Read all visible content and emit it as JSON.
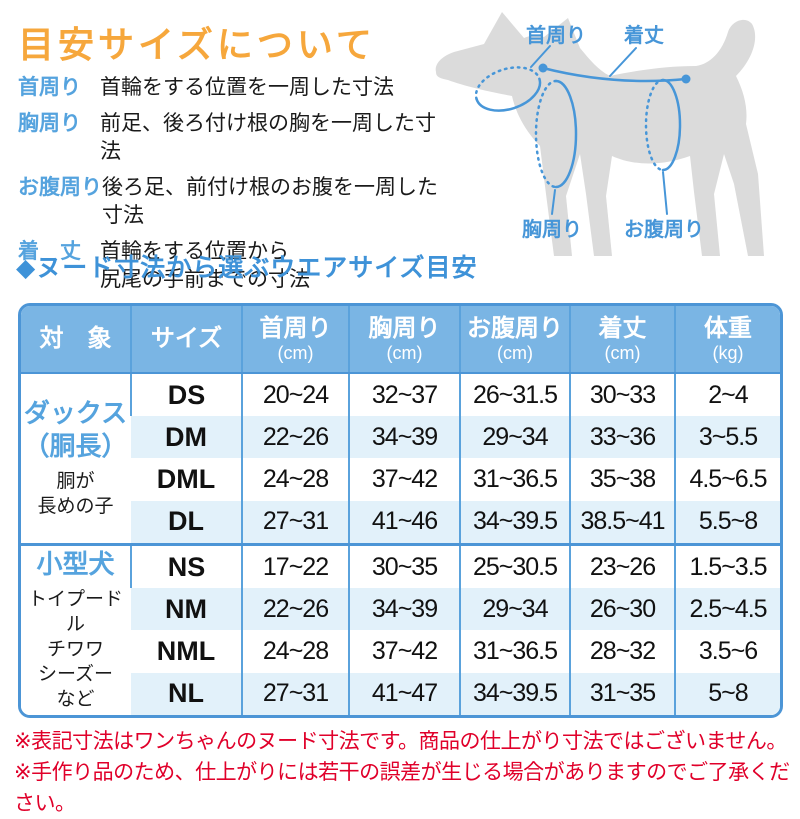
{
  "colors": {
    "title_orange": "#F6A73C",
    "label_blue": "#55A3DE",
    "section_blue": "#3E92D8",
    "table_header_blue": "#7AB5E4",
    "table_border_blue": "#4C95D6",
    "stripe_blue": "#E2F1FA",
    "note_red": "#E0002A",
    "dog_gray": "#DBDBDB",
    "diagram_blue": "#4796D8"
  },
  "header": {
    "title": "目安サイズについて"
  },
  "definitions": [
    {
      "term": "首周り",
      "desc": "首輪をする位置を一周した寸法",
      "desc2": ""
    },
    {
      "term": "胸周り",
      "desc": "前足、後ろ付け根の胸を一周した寸法",
      "desc2": ""
    },
    {
      "term": "お腹周り",
      "desc": "後ろ足、前付け根のお腹を一周した寸法",
      "desc2": ""
    },
    {
      "term": "着　丈",
      "desc": "首輪をする位置から",
      "desc2": "尻尾の手前までの寸法"
    }
  ],
  "diagram": {
    "labels": {
      "neck": "首周り",
      "back_length": "着丈",
      "chest": "胸周り",
      "belly": "お腹周り"
    }
  },
  "section": {
    "bullet": "◆",
    "title": "ヌード寸法から選ぶウエアサイズ目安"
  },
  "table": {
    "columns": [
      {
        "label": "対　象",
        "unit": ""
      },
      {
        "label": "サイズ",
        "unit": ""
      },
      {
        "label": "首周り",
        "unit": "(cm)"
      },
      {
        "label": "胸周り",
        "unit": "(cm)"
      },
      {
        "label": "お腹周り",
        "unit": "(cm)"
      },
      {
        "label": "着丈",
        "unit": "(cm)"
      },
      {
        "label": "体重",
        "unit": "(kg)"
      }
    ],
    "groups": [
      {
        "name_lines": [
          "ダックス",
          "（胴長）"
        ],
        "subtitle_lines": [
          "胴が",
          "長めの子"
        ],
        "rows": [
          {
            "size": "DS",
            "neck": "20~24",
            "chest": "32~37",
            "belly": "26~31.5",
            "length": "30~33",
            "weight": "2~4"
          },
          {
            "size": "DM",
            "neck": "22~26",
            "chest": "34~39",
            "belly": "29~34",
            "length": "33~36",
            "weight": "3~5.5"
          },
          {
            "size": "DML",
            "neck": "24~28",
            "chest": "37~42",
            "belly": "31~36.5",
            "length": "35~38",
            "weight": "4.5~6.5"
          },
          {
            "size": "DL",
            "neck": "27~31",
            "chest": "41~46",
            "belly": "34~39.5",
            "length": "38.5~41",
            "weight": "5.5~8"
          }
        ]
      },
      {
        "name_lines": [
          "小型犬"
        ],
        "subtitle_lines": [
          "トイプードル",
          "チワワ",
          "シーズー",
          "など"
        ],
        "rows": [
          {
            "size": "NS",
            "neck": "17~22",
            "chest": "30~35",
            "belly": "25~30.5",
            "length": "23~26",
            "weight": "1.5~3.5"
          },
          {
            "size": "NM",
            "neck": "22~26",
            "chest": "34~39",
            "belly": "29~34",
            "length": "26~30",
            "weight": "2.5~4.5"
          },
          {
            "size": "NML",
            "neck": "24~28",
            "chest": "37~42",
            "belly": "31~36.5",
            "length": "28~32",
            "weight": "3.5~6"
          },
          {
            "size": "NL",
            "neck": "27~31",
            "chest": "41~47",
            "belly": "34~39.5",
            "length": "31~35",
            "weight": "5~8"
          }
        ]
      }
    ]
  },
  "notes": [
    "※表記寸法はワンちゃんのヌード寸法です。商品の仕上がり寸法ではございません。",
    "※手作り品のため、仕上がりには若干の誤差が生じる場合がありますのでご了承ください。"
  ]
}
